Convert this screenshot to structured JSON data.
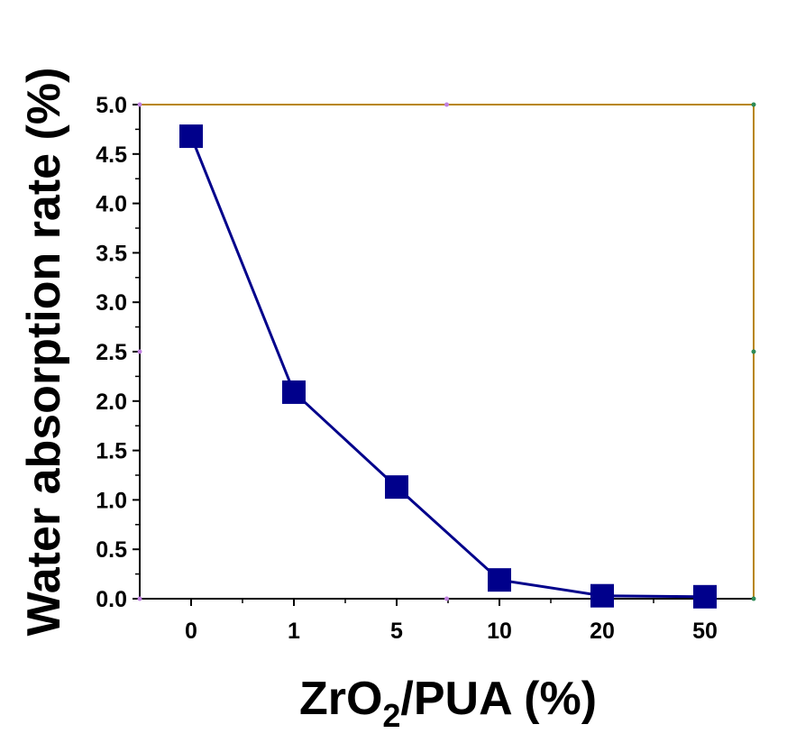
{
  "chart_data": {
    "type": "line",
    "x_categories": [
      "0",
      "1",
      "5",
      "10",
      "20",
      "50"
    ],
    "series": [
      {
        "values": [
          4.68,
          2.09,
          1.13,
          0.19,
          0.03,
          0.02
        ],
        "color": "#00008B",
        "marker": "square"
      }
    ],
    "ylabel": "Water absorption rate (%)",
    "xlabel_parts": {
      "pre": "ZrO",
      "sub": "2",
      "post": "/PUA (%)"
    },
    "ylim": [
      0,
      5.0
    ],
    "y_ticks": [
      "0.0",
      "0.5",
      "1.0",
      "1.5",
      "2.0",
      "2.5",
      "3.0",
      "3.5",
      "4.0",
      "4.5",
      "5.0"
    ],
    "grid": false,
    "legend": "none",
    "frame_colors": {
      "left": "#000000",
      "bottom": "#000000",
      "top": "#B8860B",
      "right": "#B8860B"
    }
  }
}
